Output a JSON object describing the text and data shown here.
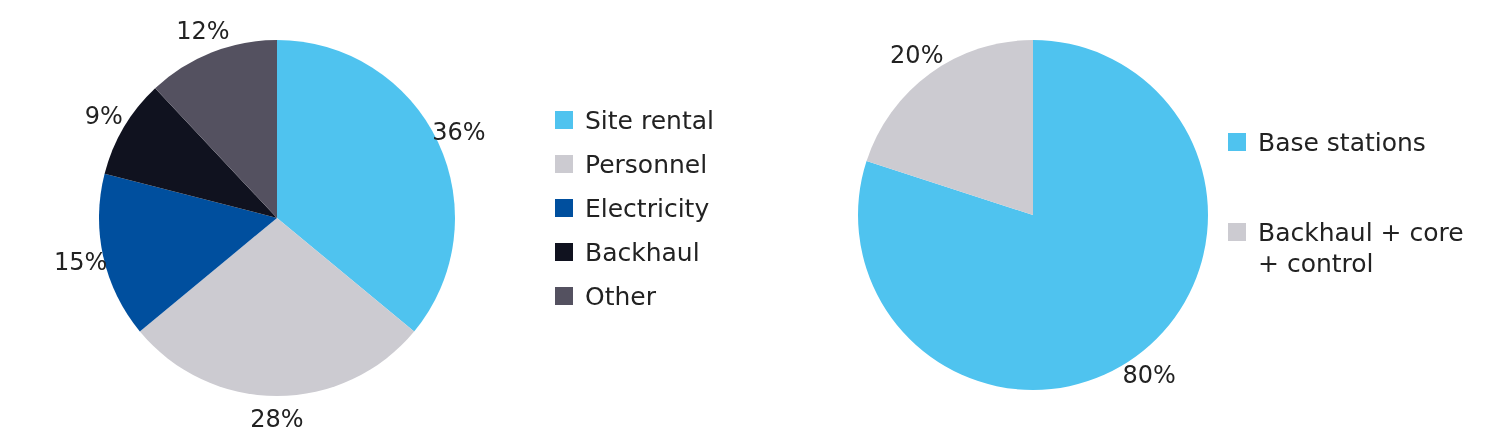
{
  "chart_data": [
    {
      "type": "pie",
      "categories": [
        "Site rental",
        "Personnel",
        "Electricity",
        "Backhaul",
        "Other"
      ],
      "values": [
        36,
        28,
        15,
        9,
        12
      ],
      "colors": [
        "#4fc3ef",
        "#cccbd1",
        "#004f9e",
        "#10121f",
        "#545160"
      ],
      "value_labels": [
        "36%",
        "28%",
        "15%",
        "9%",
        "12%"
      ],
      "legend": "right"
    },
    {
      "type": "pie",
      "categories": [
        "Base stations",
        "Backhaul + core + control"
      ],
      "values": [
        80,
        20
      ],
      "colors": [
        "#4fc3ef",
        "#cccbd1"
      ],
      "value_labels": [
        "80%",
        "20%"
      ],
      "legend": "right"
    }
  ]
}
